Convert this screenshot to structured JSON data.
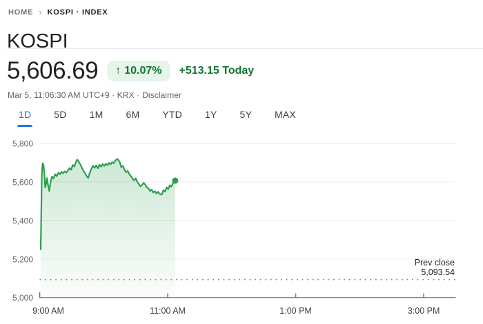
{
  "breadcrumb": {
    "home": "HOME",
    "current": "KOSPI · INDEX"
  },
  "page_title": "KOSPI",
  "quote": {
    "price": "5,606.69",
    "arrow": "↑",
    "change_percent": "10.07%",
    "change_today": "+513.15 Today",
    "timestamp": "Mar 5, 11:06:30 AM UTC+9 · KRX ·",
    "disclaimer": "Disclaimer"
  },
  "tabs": [
    {
      "label": "1D",
      "active": true
    },
    {
      "label": "5D",
      "active": false
    },
    {
      "label": "1M",
      "active": false
    },
    {
      "label": "6M",
      "active": false
    },
    {
      "label": "YTD",
      "active": false
    },
    {
      "label": "1Y",
      "active": false
    },
    {
      "label": "5Y",
      "active": false
    },
    {
      "label": "MAX",
      "active": false
    }
  ],
  "colors": {
    "accent_blue": "#1a73e8",
    "green_text": "#137333",
    "green_line": "#2e9e4f",
    "badge_bg": "#e6f4ea",
    "divider": "#e8eaed",
    "grid_line": "#e8eaed",
    "axis_line": "#70757a",
    "label_gray": "#5f6368",
    "label_dark": "#3c4043",
    "text_dark": "#202124"
  },
  "chart_data": {
    "type": "area",
    "title": "KOSPI 1D intraday price",
    "grid": true,
    "y_domain": [
      5000,
      5800
    ],
    "y_ticks": [
      {
        "label": "5,800",
        "value": 5800
      },
      {
        "label": "5,600",
        "value": 5600
      },
      {
        "label": "5,400",
        "value": 5400
      },
      {
        "label": "5,200",
        "value": 5200
      },
      {
        "label": "5,000",
        "value": 5000
      }
    ],
    "x_domain_minutes": [
      540,
      930
    ],
    "x_ticks": [
      {
        "label": "9:00 AM",
        "minutes": 540
      },
      {
        "label": "11:00 AM",
        "minutes": 660
      },
      {
        "label": "1:00 PM",
        "minutes": 780
      },
      {
        "label": "3:00 PM",
        "minutes": 900
      }
    ],
    "prev_close": 5093.54,
    "prev_close_label": [
      "Prev close",
      "5,093.54"
    ],
    "last_value": 5606.69,
    "series": [
      {
        "name": "KOSPI",
        "points": [
          [
            541,
            5250
          ],
          [
            541.5,
            5430
          ],
          [
            542,
            5640
          ],
          [
            542.8,
            5697
          ],
          [
            543.6,
            5688
          ],
          [
            544.4,
            5640
          ],
          [
            545.2,
            5572
          ],
          [
            546,
            5590
          ],
          [
            546.8,
            5620
          ],
          [
            547.8,
            5584
          ],
          [
            549,
            5553
          ],
          [
            550.2,
            5600
          ],
          [
            551.5,
            5628
          ],
          [
            553,
            5618
          ],
          [
            554.5,
            5640
          ],
          [
            556,
            5630
          ],
          [
            557.5,
            5648
          ],
          [
            559,
            5640
          ],
          [
            560.5,
            5652
          ],
          [
            562,
            5645
          ],
          [
            563.5,
            5655
          ],
          [
            565,
            5648
          ],
          [
            566.5,
            5660
          ],
          [
            568,
            5672
          ],
          [
            569.5,
            5663
          ],
          [
            571,
            5688
          ],
          [
            572.5,
            5679
          ],
          [
            574,
            5704
          ],
          [
            575.2,
            5716
          ],
          [
            576.5,
            5706
          ],
          [
            578,
            5692
          ],
          [
            579.5,
            5674
          ],
          [
            581,
            5658
          ],
          [
            582.5,
            5646
          ],
          [
            584,
            5630
          ],
          [
            585.5,
            5621
          ],
          [
            587,
            5648
          ],
          [
            588.5,
            5668
          ],
          [
            590,
            5684
          ],
          [
            591.5,
            5673
          ],
          [
            593,
            5686
          ],
          [
            594.5,
            5671
          ],
          [
            596,
            5689
          ],
          [
            597.5,
            5679
          ],
          [
            599,
            5693
          ],
          [
            600.5,
            5683
          ],
          [
            602,
            5695
          ],
          [
            603.5,
            5687
          ],
          [
            605,
            5699
          ],
          [
            606.5,
            5691
          ],
          [
            608,
            5703
          ],
          [
            609.5,
            5697
          ],
          [
            611,
            5712
          ],
          [
            613,
            5719
          ],
          [
            615,
            5703
          ],
          [
            616.5,
            5676
          ],
          [
            618,
            5683
          ],
          [
            619.5,
            5664
          ],
          [
            621,
            5650
          ],
          [
            622.5,
            5657
          ],
          [
            624,
            5640
          ],
          [
            625.5,
            5630
          ],
          [
            627,
            5618
          ],
          [
            628.5,
            5608
          ],
          [
            630,
            5619
          ],
          [
            631.5,
            5600
          ],
          [
            633,
            5588
          ],
          [
            634.5,
            5577
          ],
          [
            636,
            5585
          ],
          [
            637.5,
            5595
          ],
          [
            639,
            5585
          ],
          [
            640.5,
            5572
          ],
          [
            642,
            5566
          ],
          [
            643.5,
            5553
          ],
          [
            645,
            5560
          ],
          [
            646.5,
            5545
          ],
          [
            648,
            5552
          ],
          [
            649.5,
            5540
          ],
          [
            651,
            5549
          ],
          [
            652.5,
            5538
          ],
          [
            654.5,
            5534
          ],
          [
            656,
            5558
          ],
          [
            657.5,
            5550
          ],
          [
            659,
            5572
          ],
          [
            660.5,
            5563
          ],
          [
            662,
            5583
          ],
          [
            663.5,
            5576
          ],
          [
            665,
            5594
          ],
          [
            666,
            5601
          ],
          [
            667,
            5606.69
          ]
        ]
      }
    ]
  }
}
